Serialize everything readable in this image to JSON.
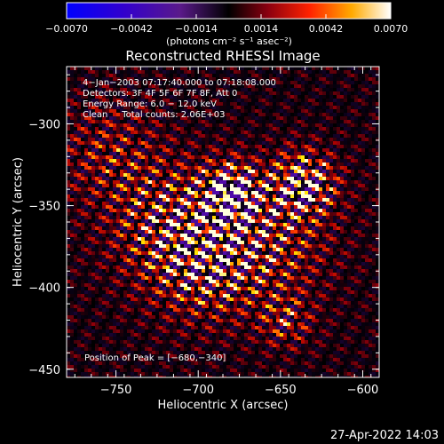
{
  "colorbar": {
    "ticks": [
      "−0.0070",
      "−0.0042",
      "−0.0014",
      "0.0014",
      "0.0042",
      "0.0070"
    ],
    "unit_label": "(photons cm⁻² s⁻¹ asec⁻²)",
    "range": [
      -0.007,
      0.007
    ]
  },
  "chart_data": {
    "type": "heatmap",
    "title": "Reconstructed RHESSI Image",
    "xlabel": "Heliocentric X (arcsec)",
    "ylabel": "Heliocentric Y (arcsec)",
    "xlim": [
      -780,
      -590
    ],
    "ylim": [
      -455,
      -265
    ],
    "x_ticks": [
      -750,
      -700,
      -650,
      -600
    ],
    "x_tick_labels": [
      "−750",
      "−700",
      "−650",
      "−600"
    ],
    "y_ticks": [
      -450,
      -400,
      -350,
      -300
    ],
    "y_tick_labels": [
      "−450",
      "−400",
      "−350",
      "−300"
    ],
    "peak": {
      "x": -680,
      "y": -340
    },
    "annotations": [
      "4−Jan−2003 07:17:40.000 to 07:18:08.000",
      "Detectors: 3F 4F 5F 6F 7F 8F, Att 0",
      "Energy Range: 6.0 − 12.0 keV",
      "Clean     Total counts: 2.06E+03"
    ],
    "peak_label": "Position of Peak = [−680,−340]",
    "colormap": "hot-with-blue-negative"
  },
  "footer": {
    "timestamp": "27-Apr-2022 14:03"
  }
}
